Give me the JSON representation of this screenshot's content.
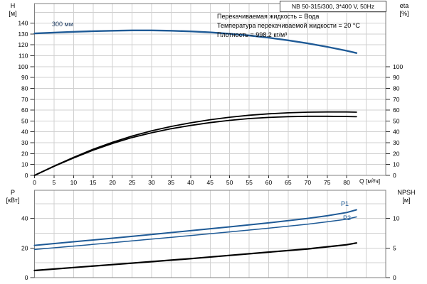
{
  "header": {
    "title_box": "NB 50-315/300, 3*400 V, 50Hz"
  },
  "info_lines": [
    "Перекачиваемая жидкость = Вода",
    "Температура перекачиваемой жидкости = 20 °C",
    "Плотность = 998.2 кг/м³"
  ],
  "colors": {
    "curve_blue": "#1e5a96",
    "curve_black": "#000000",
    "grid": "#d0d0d0",
    "frame": "#808080",
    "impeller_label": "#17365d"
  },
  "chart_data": [
    {
      "id": "top",
      "type": "line",
      "x_axis": {
        "label": "Q [м³/ч]",
        "min": 0,
        "max": 90,
        "grid_step": 5,
        "show_labels": true,
        "ticks": [
          0,
          5,
          10,
          15,
          20,
          25,
          30,
          35,
          40,
          45,
          50,
          55,
          60,
          65,
          70,
          75,
          80
        ]
      },
      "left_axis": {
        "title_lines": [
          "H",
          "[м]"
        ],
        "min": 0,
        "max": 158,
        "ticks": [
          0,
          10,
          20,
          30,
          40,
          50,
          60,
          70,
          80,
          90,
          100,
          110,
          120,
          130,
          140
        ],
        "grid": [
          10,
          20,
          30,
          40,
          50,
          60,
          70,
          80,
          90,
          100,
          110,
          120,
          130,
          140,
          150
        ]
      },
      "right_axis": {
        "title_lines": [
          "eta",
          "[%]"
        ],
        "min": 0,
        "max": 158,
        "ticks": [
          0,
          10,
          20,
          30,
          40,
          50,
          60,
          70,
          80,
          90,
          100
        ]
      },
      "series": [
        {
          "id": "head-curve",
          "name": "300 мм",
          "axis": "left",
          "color": "#1e5a96",
          "width": 2.4,
          "points": [
            [
              0,
              130.5
            ],
            [
              5,
              131.3
            ],
            [
              10,
              132.0
            ],
            [
              15,
              132.6
            ],
            [
              20,
              133.0
            ],
            [
              25,
              133.3
            ],
            [
              30,
              133.3
            ],
            [
              35,
              133.0
            ],
            [
              40,
              132.4
            ],
            [
              45,
              131.5
            ],
            [
              50,
              130.2
            ],
            [
              55,
              128.6
            ],
            [
              60,
              126.6
            ],
            [
              65,
              124.2
            ],
            [
              70,
              121.4
            ],
            [
              75,
              118.2
            ],
            [
              80,
              114.6
            ],
            [
              82.5,
              112.5
            ]
          ]
        },
        {
          "id": "eta-pump-curve",
          "name": "",
          "axis": "right",
          "color": "#000000",
          "width": 1.8,
          "points": [
            [
              0,
              0
            ],
            [
              5,
              8.5
            ],
            [
              10,
              16.5
            ],
            [
              15,
              24.0
            ],
            [
              20,
              30.5
            ],
            [
              25,
              36.2
            ],
            [
              30,
              41.0
            ],
            [
              35,
              45.0
            ],
            [
              40,
              48.3
            ],
            [
              45,
              51.2
            ],
            [
              50,
              53.5
            ],
            [
              55,
              55.3
            ],
            [
              60,
              56.6
            ],
            [
              65,
              57.5
            ],
            [
              70,
              58.1
            ],
            [
              75,
              58.3
            ],
            [
              80,
              58.3
            ],
            [
              82.5,
              58.1
            ]
          ]
        },
        {
          "id": "eta-total-curve",
          "name": "",
          "axis": "right",
          "color": "#000000",
          "width": 1.8,
          "points": [
            [
              0,
              0
            ],
            [
              5,
              8.3
            ],
            [
              10,
              16.0
            ],
            [
              15,
              23.2
            ],
            [
              20,
              29.4
            ],
            [
              25,
              34.8
            ],
            [
              30,
              39.2
            ],
            [
              35,
              42.9
            ],
            [
              40,
              45.9
            ],
            [
              45,
              48.5
            ],
            [
              50,
              50.6
            ],
            [
              55,
              52.2
            ],
            [
              60,
              53.3
            ],
            [
              65,
              54.0
            ],
            [
              70,
              54.3
            ],
            [
              75,
              54.3
            ],
            [
              80,
              54.1
            ],
            [
              82.5,
              53.9
            ]
          ]
        }
      ]
    },
    {
      "id": "bottom",
      "type": "line",
      "x_axis": {
        "label": "",
        "min": 0,
        "max": 90,
        "grid_step": 5,
        "show_labels": false,
        "ticks": []
      },
      "left_axis": {
        "title_lines": [
          "P",
          "[кВт]"
        ],
        "min": 0,
        "max": 59,
        "ticks": [
          0,
          20,
          40
        ],
        "grid": [
          10,
          20,
          30,
          40,
          50
        ]
      },
      "right_axis": {
        "title_lines": [
          "NPSH",
          "[м]"
        ],
        "min": 0,
        "max": 14.75,
        "ticks": [
          0,
          5,
          10
        ]
      },
      "series": [
        {
          "id": "p1-curve",
          "name": "P1",
          "axis": "left",
          "color": "#1e5a96",
          "width": 2.0,
          "points": [
            [
              0,
              21.8
            ],
            [
              10,
              24.2
            ],
            [
              20,
              26.6
            ],
            [
              30,
              29.1
            ],
            [
              40,
              31.7
            ],
            [
              50,
              34.3
            ],
            [
              60,
              37.0
            ],
            [
              70,
              40.0
            ],
            [
              75,
              41.8
            ],
            [
              80,
              44.0
            ],
            [
              82.5,
              45.8
            ]
          ]
        },
        {
          "id": "p2-curve",
          "name": "P2",
          "axis": "left",
          "color": "#1e5a96",
          "width": 1.5,
          "points": [
            [
              0,
              19.0
            ],
            [
              10,
              21.3
            ],
            [
              20,
              23.6
            ],
            [
              30,
              26.0
            ],
            [
              40,
              28.4
            ],
            [
              50,
              30.9
            ],
            [
              60,
              33.4
            ],
            [
              70,
              36.1
            ],
            [
              75,
              37.7
            ],
            [
              80,
              39.5
            ],
            [
              82.5,
              41.0
            ]
          ]
        },
        {
          "id": "npsh-curve",
          "name": "",
          "axis": "right",
          "color": "#000000",
          "width": 2.2,
          "points": [
            [
              0,
              1.2
            ],
            [
              10,
              1.7
            ],
            [
              20,
              2.2
            ],
            [
              30,
              2.7
            ],
            [
              40,
              3.2
            ],
            [
              50,
              3.75
            ],
            [
              60,
              4.3
            ],
            [
              70,
              4.85
            ],
            [
              75,
              5.2
            ],
            [
              80,
              5.55
            ],
            [
              82.5,
              5.85
            ]
          ]
        }
      ]
    }
  ]
}
